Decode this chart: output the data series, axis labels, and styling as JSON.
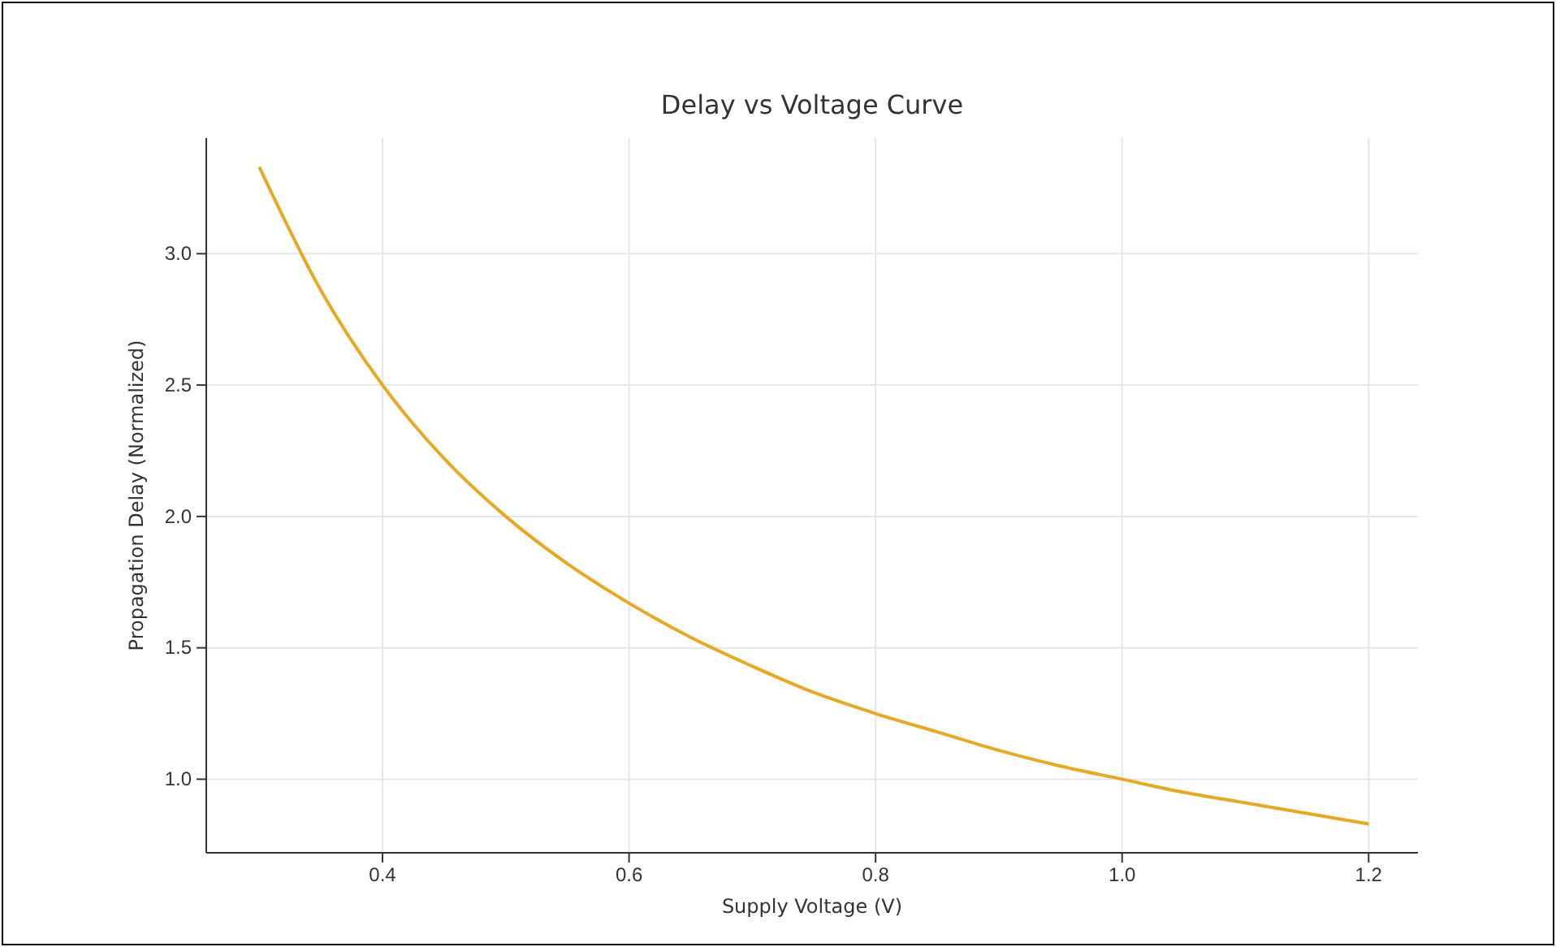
{
  "chart_data": {
    "type": "line",
    "title": "Delay vs Voltage Curve",
    "xlabel": "Supply Voltage (V)",
    "ylabel": "Propagation Delay (Normalized)",
    "x": [
      0.3,
      0.35,
      0.4,
      0.45,
      0.5,
      0.55,
      0.6,
      0.65,
      0.7,
      0.75,
      0.8,
      0.85,
      0.9,
      0.95,
      1.0,
      1.05,
      1.1,
      1.15,
      1.2
    ],
    "series": [
      {
        "color": "#e8a823",
        "values": [
          3.33,
          2.86,
          2.5,
          2.22,
          2.0,
          1.82,
          1.67,
          1.54,
          1.43,
          1.33,
          1.25,
          1.18,
          1.11,
          1.05,
          1.0,
          0.95,
          0.91,
          0.87,
          0.83
        ]
      }
    ],
    "xlim": [
      0.257,
      1.24
    ],
    "ylim": [
      0.72,
      3.44
    ],
    "xticks": [
      0.4,
      0.6,
      0.8,
      {
        "value": 1.0,
        "label": "1.0"
      },
      1.2
    ],
    "yticks": [
      {
        "value": 1.0,
        "label": "1.0"
      },
      {
        "value": 1.5,
        "label": "1.5"
      },
      {
        "value": 2.0,
        "label": "2.0"
      },
      {
        "value": 2.5,
        "label": "2.5"
      },
      {
        "value": 3.0,
        "label": "3.0"
      }
    ],
    "grid": true,
    "line_style": "solid",
    "marker": "none"
  }
}
